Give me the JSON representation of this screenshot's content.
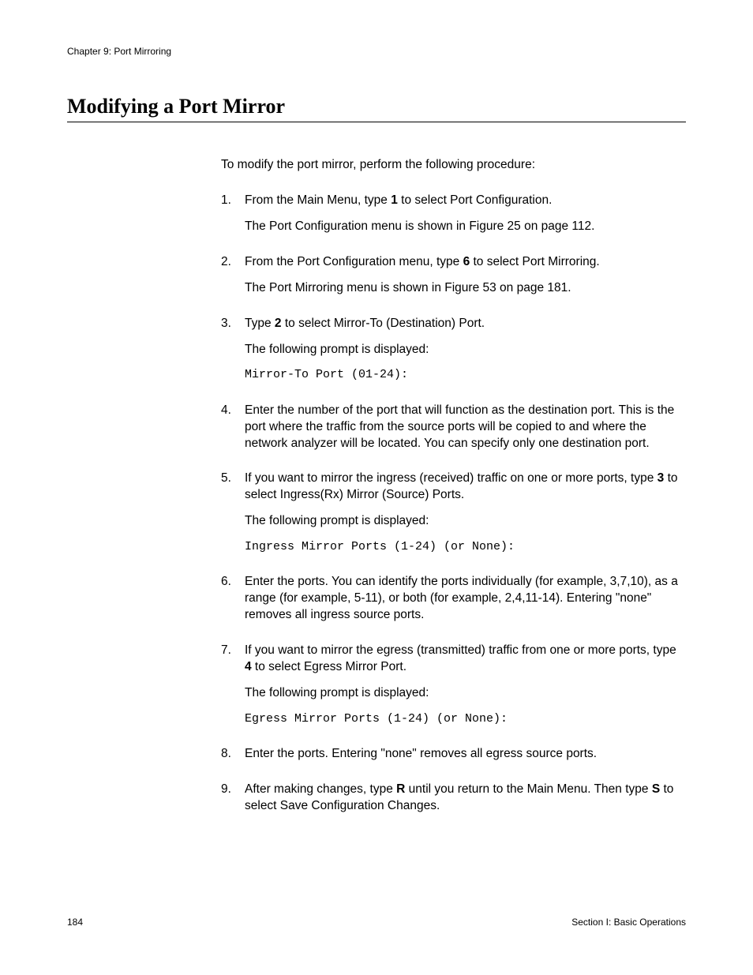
{
  "header": {
    "chapter": "Chapter 9: Port Mirroring"
  },
  "title": "Modifying a Port Mirror",
  "intro": "To modify the port mirror, perform the following procedure:",
  "steps": {
    "s1": {
      "num": "1.",
      "t1a": "From the Main Menu, type ",
      "t1b": "1",
      "t1c": " to select Port Configuration.",
      "sub": "The Port Configuration menu is shown in Figure 25 on page 112."
    },
    "s2": {
      "num": "2.",
      "t1a": "From the Port Configuration menu, type ",
      "t1b": "6",
      "t1c": " to select Port Mirroring.",
      "sub": "The Port Mirroring menu is shown in Figure 53 on page 181."
    },
    "s3": {
      "num": "3.",
      "t1a": "Type ",
      "t1b": "2",
      "t1c": " to select Mirror-To (Destination) Port.",
      "sub": "The following prompt is displayed:",
      "code": "Mirror-To Port (01-24):"
    },
    "s4": {
      "num": "4.",
      "text": "Enter the number of the port that will function as the destination port. This is the port where the traffic from the source ports will be copied to and where the network analyzer will be located. You can specify only one destination port."
    },
    "s5": {
      "num": "5.",
      "t1a": "If you want to mirror the ingress (received) traffic on one or more ports, type ",
      "t1b": "3",
      "t1c": " to select Ingress(Rx) Mirror (Source) Ports.",
      "sub": "The following prompt is displayed:",
      "code": "Ingress Mirror Ports (1-24) (or None):"
    },
    "s6": {
      "num": "6.",
      "text": "Enter the ports. You can identify the ports individually (for example, 3,7,10), as a range (for example, 5-11), or both (for example, 2,4,11-14). Entering \"none\" removes all ingress source ports."
    },
    "s7": {
      "num": "7.",
      "t1a": "If you want to mirror the egress (transmitted) traffic from one or more ports, type ",
      "t1b": "4",
      "t1c": " to select Egress Mirror Port.",
      "sub": "The following prompt is displayed:",
      "code": "Egress Mirror Ports (1-24) (or None):"
    },
    "s8": {
      "num": "8.",
      "text": "Enter the ports. Entering \"none\" removes all egress source ports."
    },
    "s9": {
      "num": "9.",
      "t1a": "After making changes, type ",
      "t1b": "R",
      "t1c": " until you return to the Main Menu. Then type ",
      "t1d": "S",
      "t1e": " to select Save Configuration Changes."
    }
  },
  "footer": {
    "page": "184",
    "section": "Section I: Basic Operations"
  }
}
